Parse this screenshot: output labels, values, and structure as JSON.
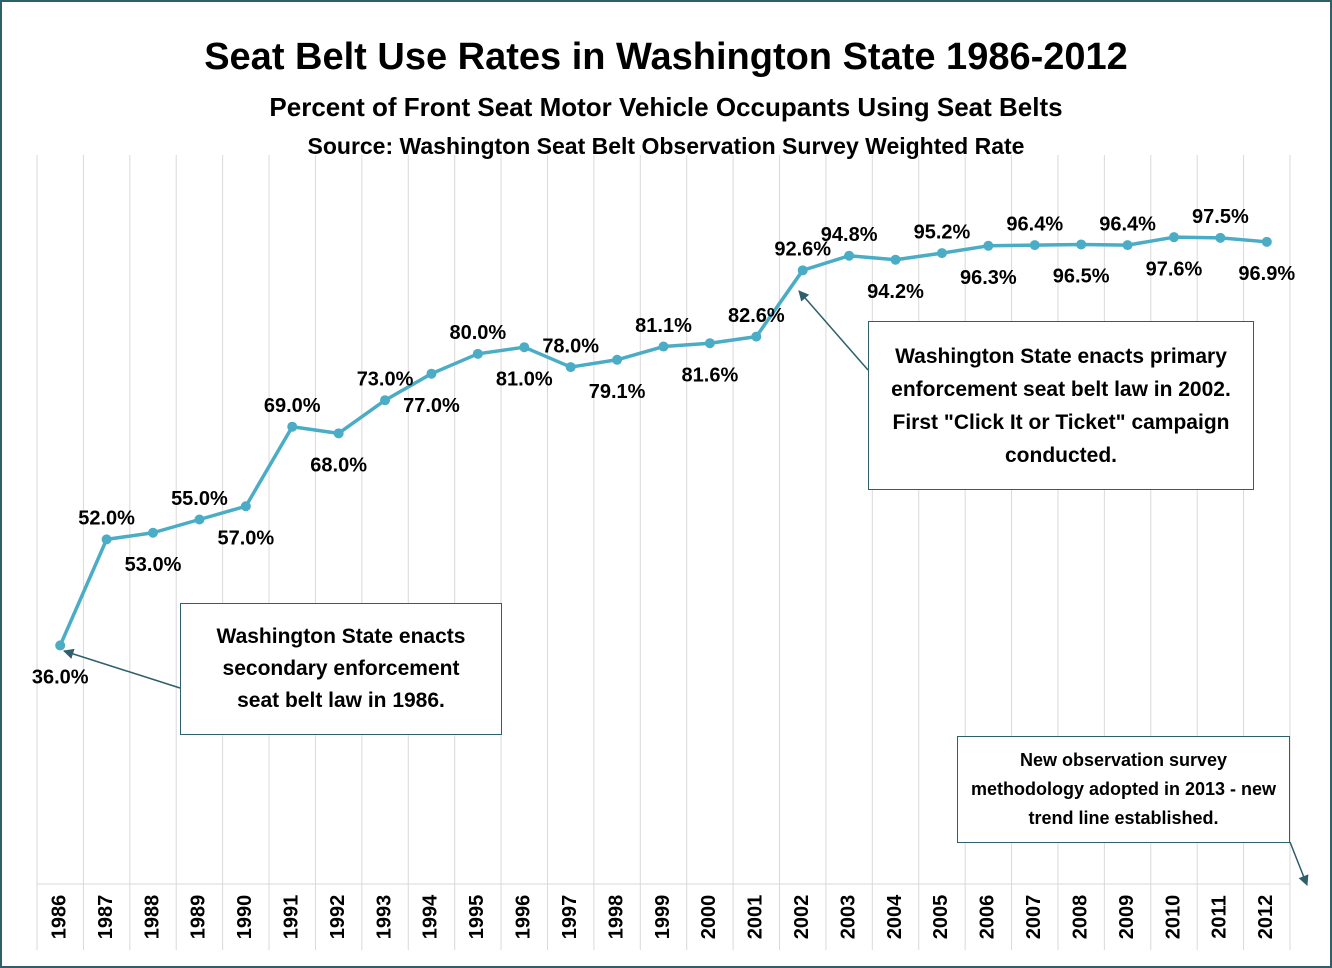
{
  "chart_data": {
    "type": "line",
    "title": "Seat Belt Use Rates in Washington State 1986-2012",
    "subtitle": "Percent of Front Seat Motor Vehicle Occupants Using Seat Belts",
    "source": "Source: Washington Seat Belt Observation Survey Weighted Rate",
    "categories": [
      "1986",
      "1987",
      "1988",
      "1989",
      "1990",
      "1991",
      "1992",
      "1993",
      "1994",
      "1995",
      "1996",
      "1997",
      "1998",
      "1999",
      "2000",
      "2001",
      "2002",
      "2003",
      "2004",
      "2005",
      "2006",
      "2007",
      "2008",
      "2009",
      "2010",
      "2011",
      "2012"
    ],
    "series": [
      {
        "color": "#4bacc6",
        "values": [
          36,
          52,
          53,
          55,
          57,
          69,
          68,
          73,
          77,
          80,
          81,
          78,
          79.1,
          81.1,
          81.6,
          82.6,
          92.6,
          94.8,
          94.2,
          95.2,
          96.3,
          96.4,
          96.5,
          96.4,
          97.6,
          97.5,
          96.9
        ],
        "value_labels": [
          "36.0%",
          "52.0%",
          "53.0%",
          "55.0%",
          "57.0%",
          "69.0%",
          "68.0%",
          "73.0%",
          "77.0%",
          "80.0%",
          "81.0%",
          "78.0%",
          "79.1%",
          "81.1%",
          "81.6%",
          "82.6%",
          "92.6%",
          "94.8%",
          "94.2%",
          "95.2%",
          "96.3%",
          "96.4%",
          "96.5%",
          "96.4%",
          "97.6%",
          "97.5%",
          "96.9%"
        ]
      }
    ],
    "ylim": [
      0,
      110
    ],
    "annotations": [
      "Washington State enacts secondary enforcement seat belt law in 1986.",
      "Washington State enacts primary enforcement seat belt law in 2002. First \"Click It or Ticket\" campaign conducted.",
      "New observation survey methodology adopted in 2013 - new trend line established."
    ]
  }
}
